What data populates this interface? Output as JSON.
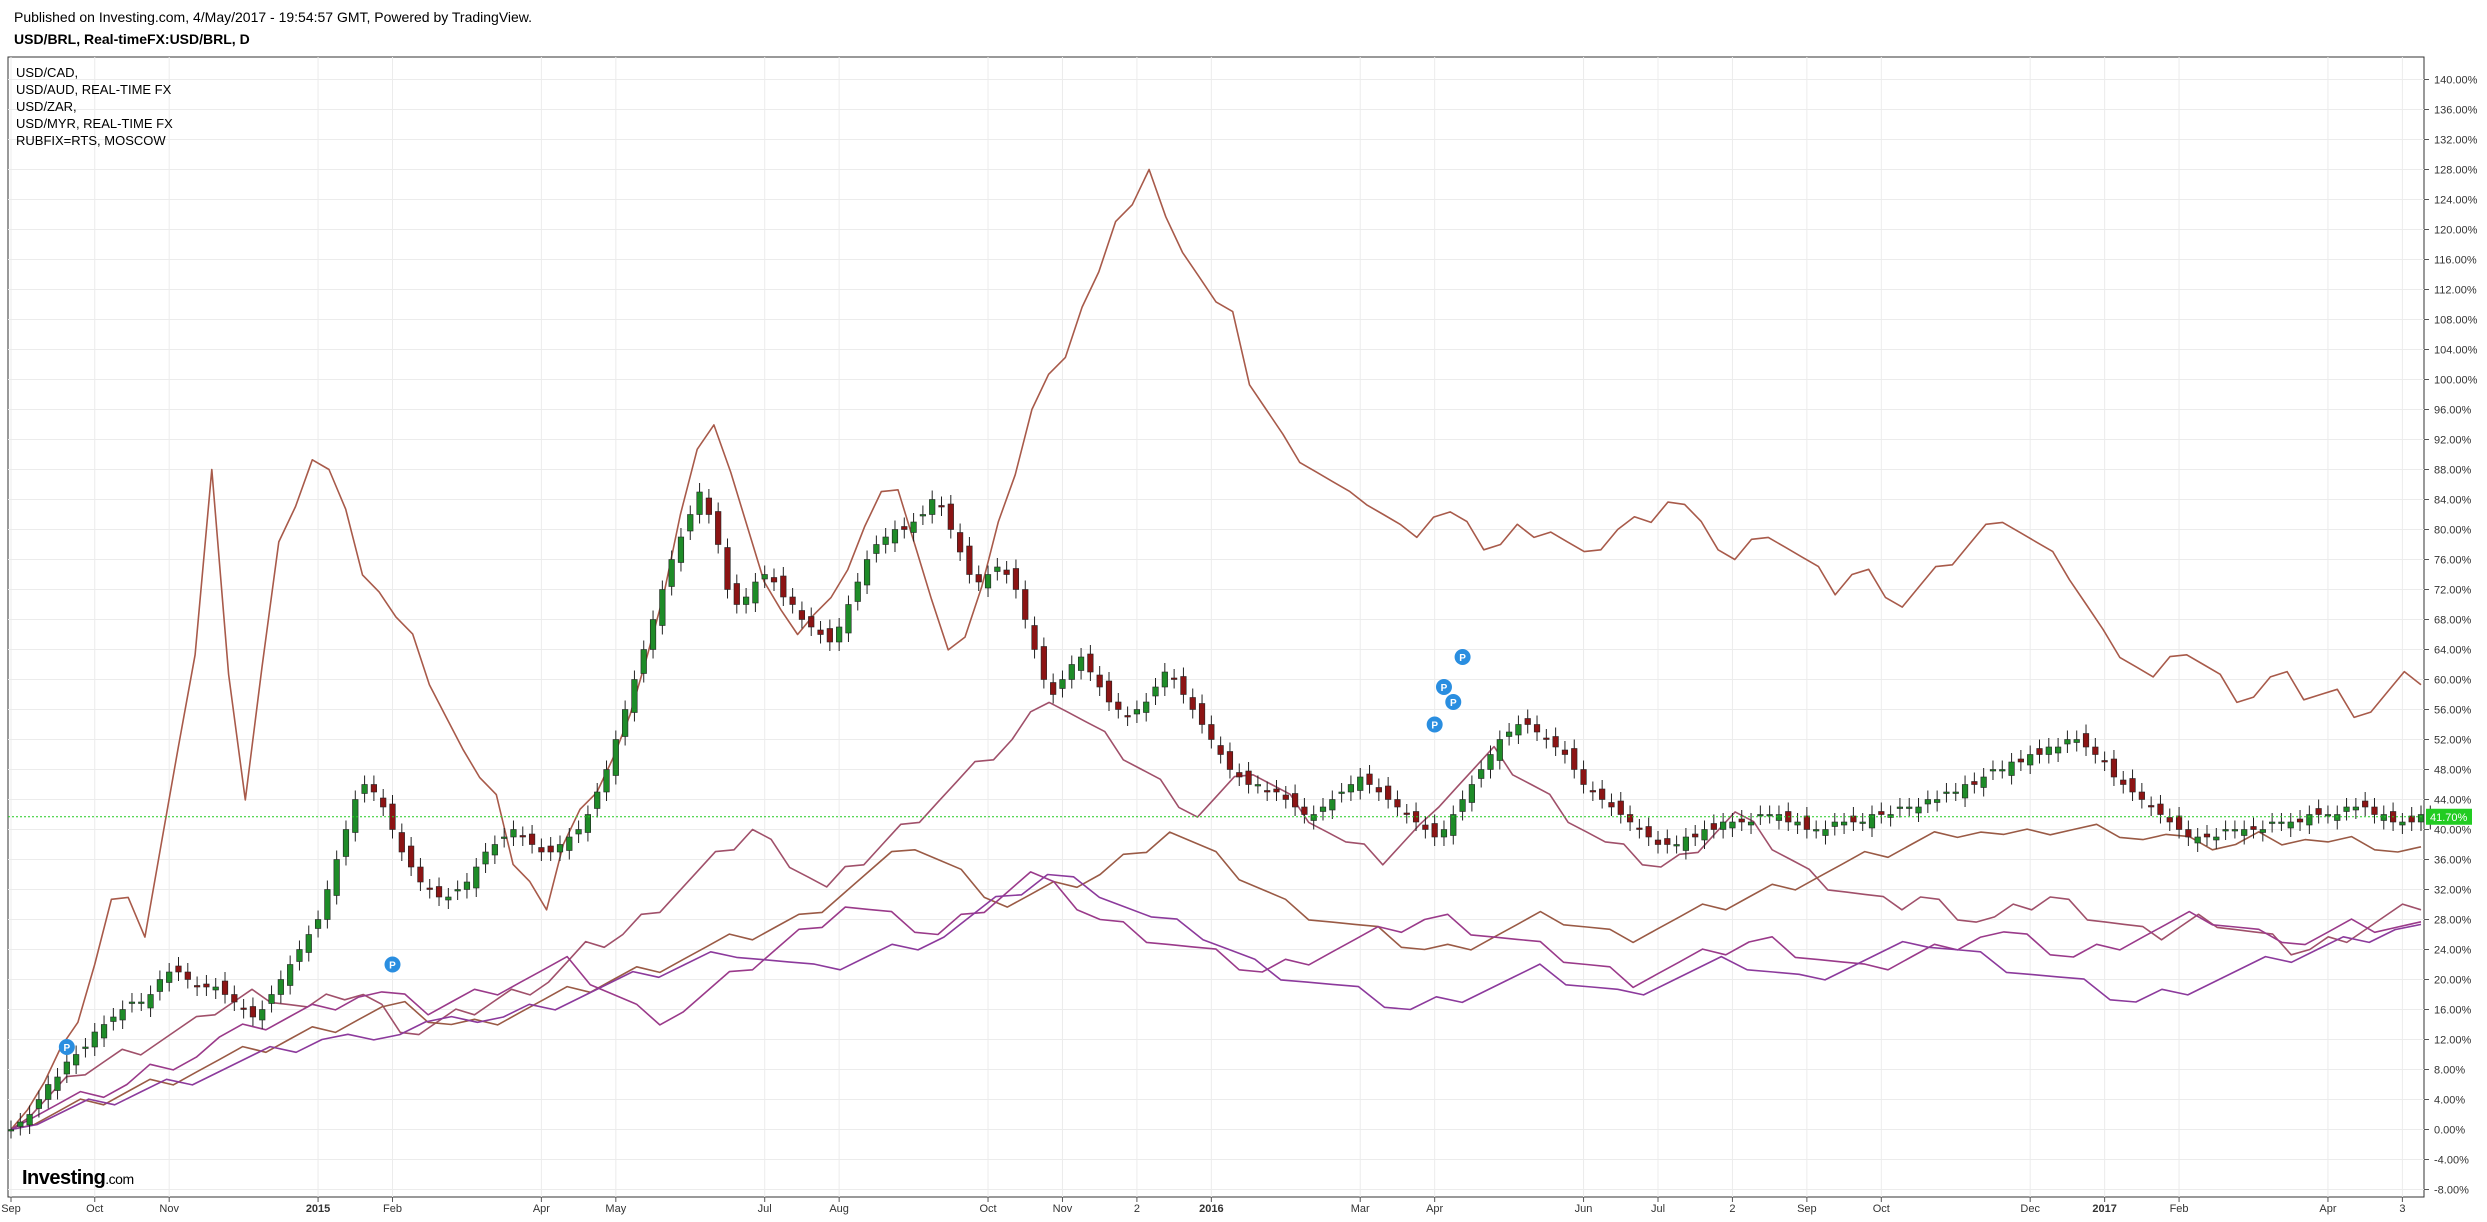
{
  "header": {
    "published": "Published on Investing.com, 4/May/2017 - 19:54:57 GMT, Powered by TradingView.",
    "symbol": "USD/BRL, Real-timeFX:USD/BRL, D"
  },
  "legend": [
    "USD/CAD,",
    "USD/AUD, REAL-TIME FX",
    "USD/ZAR,",
    "USD/MYR, REAL-TIME FX",
    "RUBFIX=RTS, MOSCOW"
  ],
  "logo": {
    "main": "Investing",
    "suffix": ".com"
  },
  "chart_data": {
    "type": "line",
    "title": "USD/BRL, Real-timeFX:USD/BRL, D",
    "y_unit": "%",
    "ylim": [
      -9,
      143
    ],
    "y_ticks": [
      "-8.00%",
      "-4.00%",
      "0.00%",
      "4.00%",
      "8.00%",
      "12.00%",
      "16.00%",
      "20.00%",
      "24.00%",
      "28.00%",
      "32.00%",
      "36.00%",
      "40.00%",
      "44.00%",
      "48.00%",
      "52.00%",
      "56.00%",
      "60.00%",
      "64.00%",
      "68.00%",
      "72.00%",
      "76.00%",
      "80.00%",
      "84.00%",
      "88.00%",
      "92.00%",
      "96.00%",
      "100.00%",
      "104.00%",
      "108.00%",
      "112.00%",
      "116.00%",
      "120.00%",
      "124.00%",
      "128.00%",
      "132.00%",
      "136.00%",
      "140.00%"
    ],
    "x_ticks": [
      "Sep",
      "Oct",
      "Nov",
      "2015",
      "Feb",
      "Apr",
      "May",
      "Jul",
      "Aug",
      "Oct",
      "Nov",
      "2",
      "2016",
      "Mar",
      "Apr",
      "Jun",
      "Jul",
      "2",
      "Sep",
      "Oct",
      "Dec",
      "2017",
      "Feb",
      "Apr",
      "3"
    ],
    "x_tick_index": [
      0,
      9,
      17,
      33,
      41,
      57,
      65,
      81,
      89,
      105,
      113,
      121,
      129,
      145,
      153,
      169,
      177,
      185,
      193,
      201,
      217,
      225,
      233,
      249,
      257
    ],
    "current_label": "41.70%",
    "current_value": 41.7,
    "grid": true,
    "legend_position": "top-left",
    "colors": {
      "usdbrl_up": "#1e8c28",
      "usdbrl_down": "#8c1414",
      "rubfix": "#a85a4a",
      "usdzar": "#a0506a",
      "usdcad": "#9a5a45",
      "usdaud": "#9a3a8a",
      "usdmyr": "#8c3a9c",
      "current_line": "#22cc22",
      "marker": "#2a8ee0"
    },
    "series": [
      {
        "name": "USD/BRL",
        "style": "candles",
        "values": [
          0,
          1,
          2,
          4,
          6,
          7,
          9,
          10,
          11,
          13,
          14,
          15,
          16,
          17,
          17,
          18,
          20,
          21,
          21,
          20,
          19,
          19,
          19,
          18,
          17,
          16,
          15,
          16,
          18,
          20,
          22,
          24,
          26,
          28,
          32,
          36,
          40,
          44,
          46,
          45,
          43,
          40,
          37,
          35,
          33,
          32,
          31,
          31,
          32,
          33,
          35,
          37,
          38,
          39,
          40,
          39,
          38,
          37,
          37,
          38,
          39,
          40,
          42,
          45,
          48,
          52,
          56,
          60,
          64,
          68,
          72,
          76,
          79,
          82,
          85,
          82,
          78,
          72,
          70,
          71,
          73,
          74,
          73,
          71,
          70,
          68,
          67,
          66,
          65,
          67,
          70,
          73,
          76,
          78,
          79,
          80,
          80,
          81,
          82,
          84,
          83,
          80,
          77,
          74,
          73,
          74,
          75,
          74,
          72,
          68,
          64,
          60,
          58,
          60,
          62,
          63,
          61,
          59,
          57,
          56,
          55,
          56,
          57,
          59,
          61,
          60,
          58,
          56,
          54,
          52,
          50,
          48,
          47,
          46,
          46,
          45,
          45,
          44,
          43,
          42,
          42,
          43,
          44,
          45,
          46,
          47,
          46,
          45,
          44,
          43,
          42,
          41,
          40,
          39,
          40,
          42,
          44,
          46,
          48,
          50,
          52,
          53,
          54,
          54,
          53,
          52,
          51,
          50,
          48,
          46,
          45,
          44,
          43,
          42,
          41,
          40,
          39,
          38,
          38,
          38,
          39,
          39,
          40,
          40,
          41,
          41,
          41,
          41,
          42,
          42,
          42,
          41,
          41,
          40,
          40,
          40,
          41,
          41,
          41,
          41,
          42,
          42,
          42,
          43,
          43,
          43,
          44,
          44,
          45,
          45,
          46,
          46,
          47,
          48,
          48,
          49,
          49,
          50,
          50,
          51,
          51,
          52,
          52,
          51,
          50,
          49,
          47,
          46,
          45,
          44,
          43,
          42,
          41,
          40,
          39,
          39,
          39,
          39,
          40,
          40,
          40,
          40,
          40,
          41,
          41,
          41,
          41,
          42,
          42,
          42,
          42,
          43,
          43,
          43,
          42,
          42,
          41,
          41,
          41,
          42,
          42
        ],
        "values_note": "approximate weekly closes, % change"
      },
      {
        "name": "RUBFIX=RTS, MOSCOW",
        "values": [
          0,
          3,
          6,
          10,
          15,
          22,
          30,
          32,
          26,
          38,
          50,
          64,
          88,
          60,
          45,
          62,
          78,
          82,
          90,
          88,
          82,
          75,
          72,
          68,
          65,
          60,
          55,
          50,
          48,
          45,
          35,
          32,
          30,
          38,
          42,
          46,
          50,
          55,
          62,
          72,
          82,
          90,
          95,
          88,
          80,
          72,
          70,
          66,
          68,
          72,
          75,
          80,
          84,
          86,
          78,
          70,
          65,
          66,
          72,
          80,
          88,
          96,
          100,
          104,
          110,
          114,
          120,
          124,
          128,
          121,
          118,
          114,
          110,
          108,
          100,
          96,
          92,
          90,
          88,
          86,
          84,
          84,
          82,
          80,
          80,
          82,
          82,
          80,
          78,
          78,
          80,
          80,
          80,
          78,
          76,
          78,
          80,
          81,
          82,
          84,
          83,
          80,
          78,
          76,
          78,
          80,
          78,
          76,
          74,
          72,
          74,
          74,
          72,
          70,
          72,
          74,
          76,
          78,
          80,
          82,
          80,
          78,
          76,
          74,
          70,
          66,
          64,
          62,
          60,
          62,
          64,
          62,
          60,
          58,
          58,
          60,
          60,
          58,
          58,
          58,
          56,
          56,
          58,
          60,
          60
        ],
        "values_note": "approximate weekly closes, % change"
      },
      {
        "name": "USD/ZAR,",
        "values": [
          0,
          2,
          4,
          6,
          8,
          9,
          10,
          11,
          12,
          13,
          14,
          16,
          17,
          18,
          18,
          17,
          16,
          17,
          18,
          18,
          16,
          14,
          13,
          14,
          15,
          16,
          17,
          18,
          19,
          20,
          22,
          24,
          25,
          26,
          28,
          30,
          32,
          34,
          36,
          38,
          40,
          38,
          36,
          34,
          32,
          34,
          36,
          38,
          40,
          42,
          44,
          46,
          48,
          50,
          52,
          55,
          58,
          56,
          54,
          52,
          50,
          48,
          46,
          44,
          42,
          44,
          46,
          48,
          46,
          44,
          42,
          40,
          38,
          37,
          36,
          38,
          40,
          44,
          46,
          48,
          50,
          48,
          46,
          44,
          42,
          40,
          38,
          37,
          36,
          35,
          36,
          38,
          40,
          42,
          40,
          38,
          36,
          34,
          33,
          32,
          31,
          30,
          30,
          31,
          30,
          29,
          28,
          28,
          29,
          30,
          31,
          30,
          29,
          28,
          27,
          26,
          26,
          27,
          28,
          28,
          27,
          26,
          25,
          24,
          24,
          25,
          26,
          27,
          28,
          29,
          30
        ],
        "values_note": "approximate weekly closes, % change"
      },
      {
        "name": "USD/CAD,",
        "values": [
          0,
          1,
          2,
          3,
          4,
          5,
          6,
          7,
          8,
          9,
          10,
          11,
          12,
          13,
          14,
          15,
          16,
          16,
          15,
          14,
          14,
          15,
          16,
          17,
          18,
          19,
          20,
          21,
          22,
          23,
          24,
          25,
          26,
          27,
          28,
          30,
          32,
          34,
          36,
          38,
          36,
          34,
          32,
          30,
          31,
          32,
          33,
          34,
          36,
          38,
          40,
          38,
          36,
          34,
          32,
          30,
          29,
          28,
          27,
          26,
          25,
          24,
          24,
          25,
          26,
          27,
          28,
          28,
          27,
          26,
          26,
          27,
          28,
          29,
          30,
          31,
          32,
          33,
          34,
          35,
          36,
          37,
          38,
          39,
          40,
          40,
          39,
          39,
          40,
          40,
          40,
          40,
          39,
          39,
          38,
          38,
          38,
          39,
          39,
          39,
          38,
          38,
          38,
          37,
          37
        ],
        "values_note": "approximate weekly closes, % change"
      },
      {
        "name": "USD/AUD, REAL-TIME FX",
        "values": [
          0,
          2,
          3,
          4,
          5,
          6,
          8,
          9,
          10,
          12,
          13,
          14,
          15,
          16,
          17,
          18,
          18,
          17,
          16,
          17,
          18,
          19,
          20,
          21,
          22,
          20,
          18,
          16,
          15,
          16,
          18,
          20,
          22,
          24,
          26,
          28,
          30,
          29,
          28,
          27,
          26,
          28,
          30,
          32,
          34,
          32,
          30,
          28,
          27,
          26,
          25,
          24,
          23,
          22,
          21,
          22,
          23,
          24,
          25,
          26,
          27,
          28,
          28,
          27,
          26,
          25,
          24,
          23,
          22,
          21,
          20,
          21,
          22,
          23,
          24,
          25,
          25,
          24,
          23,
          22,
          21,
          22,
          23,
          24,
          25,
          26,
          26,
          25,
          24,
          23,
          24,
          25,
          26,
          27,
          28,
          28,
          27,
          26,
          26,
          25,
          26,
          27,
          27,
          27,
          27
        ],
        "values_note": "approximate weekly closes, % change"
      },
      {
        "name": "USD/MYR, REAL-TIME FX",
        "values": [
          0,
          1,
          2,
          3,
          4,
          5,
          6,
          7,
          8,
          9,
          10,
          11,
          12,
          12,
          13,
          13,
          14,
          14,
          15,
          15,
          16,
          17,
          18,
          19,
          20,
          21,
          22,
          23,
          24,
          23,
          22,
          21,
          22,
          23,
          24,
          25,
          26,
          28,
          30,
          32,
          34,
          33,
          32,
          30,
          28,
          27,
          26,
          24,
          22,
          21,
          20,
          19,
          18,
          17,
          16,
          17,
          18,
          19,
          20,
          21,
          20,
          19,
          18,
          19,
          20,
          21,
          22,
          22,
          21,
          20,
          21,
          22,
          23,
          24,
          25,
          24,
          23,
          22,
          21,
          20,
          19,
          18,
          17,
          18,
          19,
          20,
          21,
          22,
          23,
          24,
          25,
          26,
          27,
          27
        ],
        "values_note": "approximate weekly closes, % change"
      }
    ],
    "markers": [
      {
        "label": "P",
        "index": 6,
        "value": 11
      },
      {
        "label": "P",
        "index": 41,
        "value": 22
      },
      {
        "label": "P",
        "index": 156,
        "value": 63
      },
      {
        "label": "P",
        "index": 154,
        "value": 59
      },
      {
        "label": "P",
        "index": 155,
        "value": 57
      },
      {
        "label": "P",
        "index": 153,
        "value": 54
      }
    ]
  }
}
